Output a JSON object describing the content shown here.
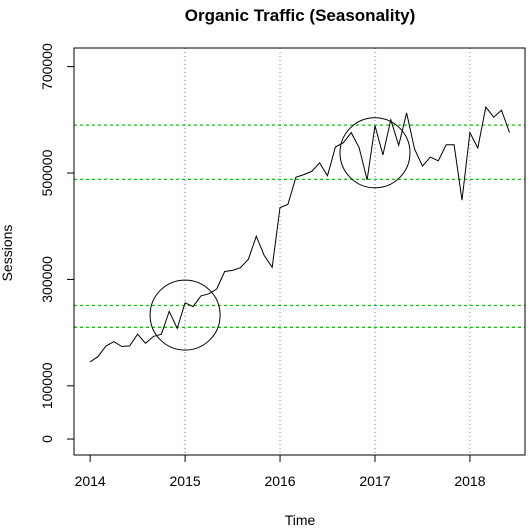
{
  "chart_data": {
    "type": "line",
    "title": "Organic Traffic (Seasonality)",
    "xlabel": "Time",
    "ylabel": "Sessions",
    "xlim": [
      2013.83,
      2018.58
    ],
    "ylim": [
      -30000,
      735000
    ],
    "x_ticks": [
      {
        "value": 2014,
        "label": "2014"
      },
      {
        "value": 2015,
        "label": "2015"
      },
      {
        "value": 2016,
        "label": "2016"
      },
      {
        "value": 2017,
        "label": "2017"
      },
      {
        "value": 2018,
        "label": "2018"
      }
    ],
    "y_ticks": [
      {
        "value": 0,
        "label": "0"
      },
      {
        "value": 100000,
        "label": "100000"
      },
      {
        "value": 300000,
        "label": "300000"
      },
      {
        "value": 500000,
        "label": "500000"
      },
      {
        "value": 700000,
        "label": "700000"
      }
    ],
    "series": [
      {
        "color": "#000000",
        "x": [
          2014.0,
          2014.083,
          2014.167,
          2014.25,
          2014.333,
          2014.417,
          2014.5,
          2014.583,
          2014.667,
          2014.75,
          2014.833,
          2014.917,
          2015.0,
          2015.083,
          2015.167,
          2015.25,
          2015.333,
          2015.417,
          2015.5,
          2015.583,
          2015.667,
          2015.75,
          2015.833,
          2015.917,
          2016.0,
          2016.083,
          2016.167,
          2016.25,
          2016.333,
          2016.417,
          2016.5,
          2016.583,
          2016.667,
          2016.75,
          2016.833,
          2016.917,
          2017.0,
          2017.083,
          2017.167,
          2017.25,
          2017.333,
          2017.417,
          2017.5,
          2017.583,
          2017.667,
          2017.75,
          2017.833,
          2017.917,
          2018.0,
          2018.083,
          2018.167,
          2018.25,
          2018.333,
          2018.417
        ],
        "y": [
          145000,
          155000,
          175000,
          183000,
          174000,
          175000,
          197000,
          180000,
          193000,
          197000,
          240000,
          208000,
          256000,
          249000,
          269000,
          273000,
          282000,
          315000,
          317000,
          322000,
          338000,
          381000,
          345000,
          323000,
          435000,
          441000,
          492000,
          497000,
          503000,
          519000,
          495000,
          549000,
          557000,
          576000,
          548000,
          487000,
          589000,
          534000,
          600000,
          552000,
          613000,
          545000,
          513000,
          530000,
          523000,
          553000,
          553000,
          449000,
          576000,
          547000,
          624000,
          605000,
          618000,
          576000
        ]
      }
    ],
    "h_reference_lines": [
      {
        "value": 210000,
        "color": "#00cc00"
      },
      {
        "value": 251000,
        "color": "#00cc00"
      },
      {
        "value": 488000,
        "color": "#00cc00"
      },
      {
        "value": 590000,
        "color": "#00cc00"
      }
    ],
    "v_reference_lines": [
      {
        "value": 2015,
        "color": "#6666ff"
      },
      {
        "value": 2016,
        "color": "#8888cc"
      },
      {
        "value": 2017,
        "color": "#6666ff"
      },
      {
        "value": 2018,
        "color": "#8888cc"
      }
    ],
    "annotations": [
      {
        "shape": "circle",
        "x": 2015.0,
        "y": 233000
      },
      {
        "shape": "circle",
        "x": 2017.0,
        "y": 538000
      }
    ]
  }
}
